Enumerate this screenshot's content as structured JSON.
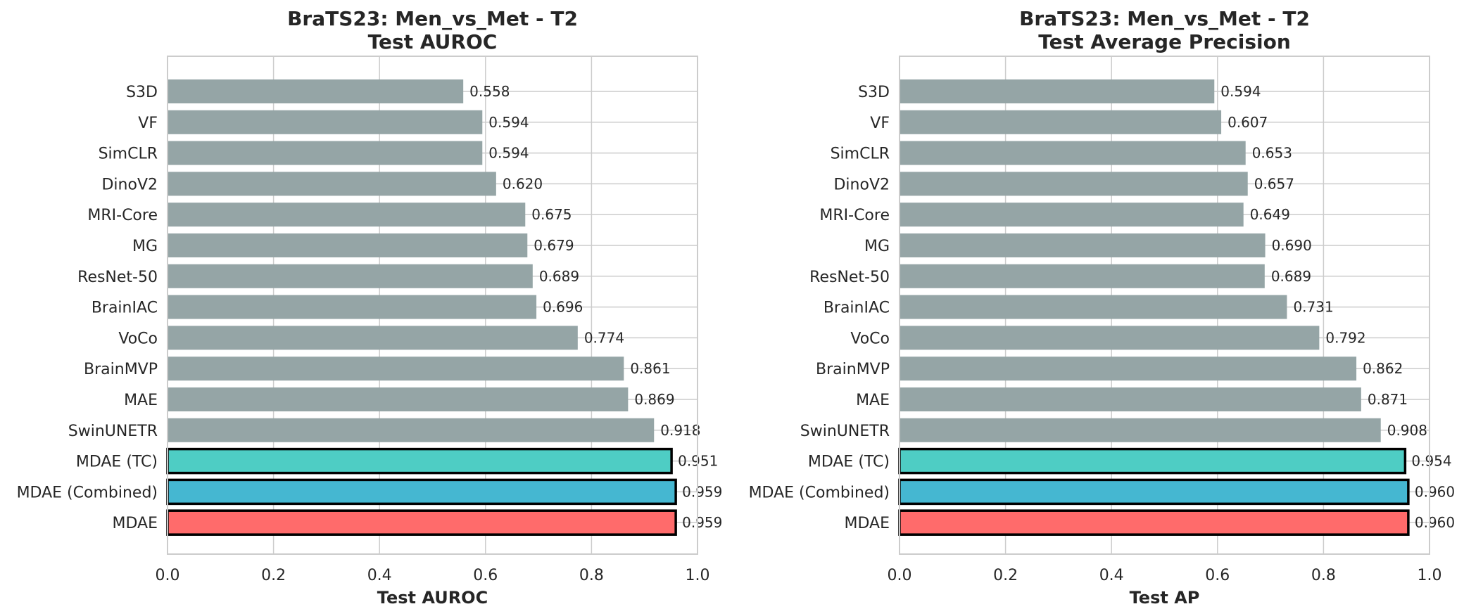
{
  "colors": {
    "baseline": "#95a5a6",
    "highlight_tc": "#4ecdc4",
    "highlight_combined": "#45b7d1",
    "highlight_main": "#ff6b6b",
    "highlight_edge": "#000000",
    "grid": "#cccccc",
    "frame": "#cccccc"
  },
  "chart_data": [
    {
      "type": "bar",
      "orientation": "horizontal",
      "title": "BraTS23: Men_vs_Met - T2",
      "subtitle": "Test AUROC",
      "xlabel": "Test AUROC",
      "ylabel": "",
      "xlim": [
        0.0,
        1.0
      ],
      "xticks": [
        "0.0",
        "0.2",
        "0.4",
        "0.6",
        "0.8",
        "1.0"
      ],
      "grid": true,
      "categories": [
        "S3D",
        "VF",
        "SimCLR",
        "DinoV2",
        "MRI-Core",
        "MG",
        "ResNet-50",
        "BrainIAC",
        "VoCo",
        "BrainMVP",
        "MAE",
        "SwinUNETR",
        "MDAE (TC)",
        "MDAE (Combined)",
        "MDAE"
      ],
      "values": [
        0.558,
        0.594,
        0.594,
        0.62,
        0.675,
        0.679,
        0.689,
        0.696,
        0.774,
        0.861,
        0.869,
        0.918,
        0.951,
        0.959,
        0.959
      ],
      "value_labels": [
        "0.558",
        "0.594",
        "0.594",
        "0.620",
        "0.675",
        "0.679",
        "0.689",
        "0.696",
        "0.774",
        "0.861",
        "0.869",
        "0.918",
        "0.951",
        "0.959",
        "0.959"
      ],
      "highlighted": [
        "MDAE (TC)",
        "MDAE (Combined)",
        "MDAE"
      ]
    },
    {
      "type": "bar",
      "orientation": "horizontal",
      "title": "BraTS23: Men_vs_Met - T2",
      "subtitle": "Test Average Precision",
      "xlabel": "Test AP",
      "ylabel": "",
      "xlim": [
        0.0,
        1.0
      ],
      "xticks": [
        "0.0",
        "0.2",
        "0.4",
        "0.6",
        "0.8",
        "1.0"
      ],
      "grid": true,
      "categories": [
        "S3D",
        "VF",
        "SimCLR",
        "DinoV2",
        "MRI-Core",
        "MG",
        "ResNet-50",
        "BrainIAC",
        "VoCo",
        "BrainMVP",
        "MAE",
        "SwinUNETR",
        "MDAE (TC)",
        "MDAE (Combined)",
        "MDAE"
      ],
      "values": [
        0.594,
        0.607,
        0.653,
        0.657,
        0.649,
        0.69,
        0.689,
        0.731,
        0.792,
        0.862,
        0.871,
        0.908,
        0.954,
        0.96,
        0.96
      ],
      "value_labels": [
        "0.594",
        "0.607",
        "0.653",
        "0.657",
        "0.649",
        "0.690",
        "0.689",
        "0.731",
        "0.792",
        "0.862",
        "0.871",
        "0.908",
        "0.954",
        "0.960",
        "0.960"
      ],
      "highlighted": [
        "MDAE (TC)",
        "MDAE (Combined)",
        "MDAE"
      ]
    }
  ]
}
